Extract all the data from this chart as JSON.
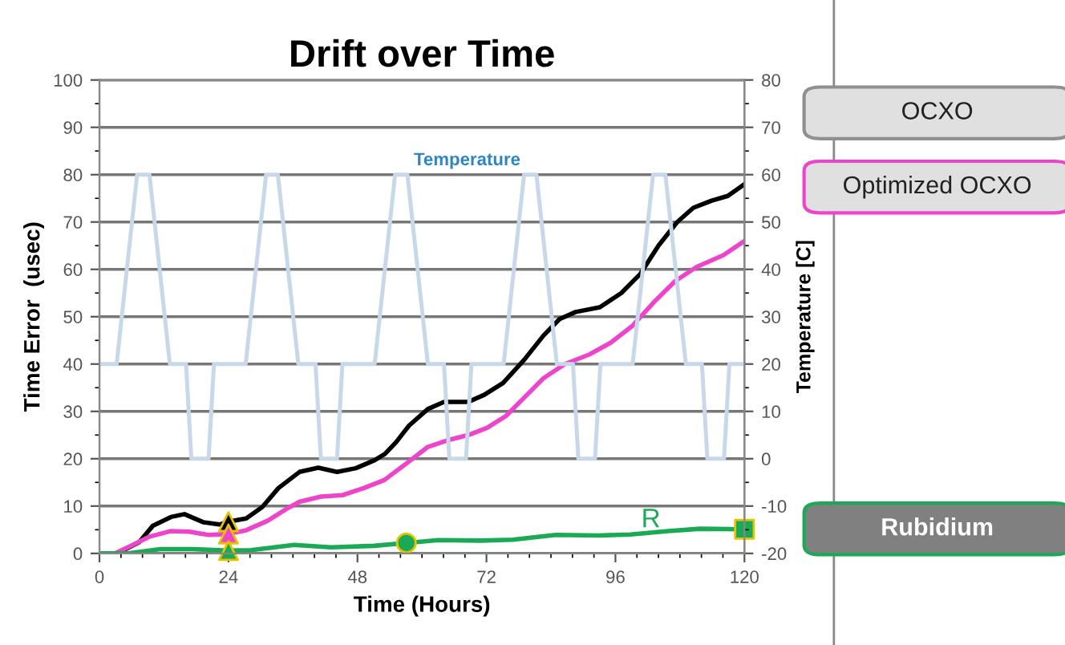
{
  "chart_data": {
    "type": "line",
    "title": "Drift over Time",
    "xlabel": "Time (Hours)",
    "ylabel": "Time Error  (usec)",
    "y2label": "Temperature [C]",
    "xlim": [
      0,
      120
    ],
    "xticks": [
      0,
      24,
      48,
      72,
      96,
      120
    ],
    "ylim": [
      0,
      100
    ],
    "yticks": [
      0,
      10,
      20,
      30,
      40,
      50,
      60,
      70,
      80,
      90,
      100
    ],
    "y2lim": [
      -20,
      80
    ],
    "y2ticks": [
      -20,
      -10,
      0,
      10,
      20,
      30,
      40,
      50,
      60,
      70,
      80
    ],
    "grid": "y",
    "legend": "right",
    "marker": "none",
    "line_style": "solid",
    "annotations": [
      "R"
    ],
    "series": [
      {
        "name": "Temperature",
        "axis": "y2",
        "color": "#c8d8ea",
        "x": [
          0,
          3.2,
          7,
          9.3,
          13.1,
          16.1,
          17.1,
          20.3,
          21.3,
          27.2,
          31,
          33.2,
          37,
          40.2,
          41.2,
          44.2,
          45.2,
          51.2,
          55,
          57.3,
          61.1,
          64.1,
          65.1,
          68.2,
          69.2,
          75.2,
          79,
          81.3,
          85.1,
          88.1,
          89.1,
          92.2,
          93.2,
          99.2,
          103,
          105.3,
          109.1,
          112.1,
          113.1,
          116.2,
          117.2,
          120
        ],
        "values": [
          20,
          20,
          60,
          60,
          20,
          20,
          0,
          0,
          20,
          20,
          60,
          60,
          20,
          20,
          0,
          0,
          20,
          20,
          60,
          60,
          20,
          20,
          0,
          0,
          20,
          20,
          60,
          60,
          20,
          20,
          0,
          0,
          20,
          20,
          60,
          60,
          20,
          20,
          0,
          0,
          20,
          20
        ]
      },
      {
        "name": "OCXO",
        "color": "#000000",
        "x": [
          0,
          3.3,
          7.4,
          9.9,
          13.3,
          15.8,
          19.3,
          22.3,
          24,
          27.3,
          30.3,
          33.3,
          37.2,
          40.7,
          44.2,
          47.7,
          51.2,
          53.1,
          55.2,
          57.6,
          61.1,
          64.1,
          68.6,
          71.6,
          75.1,
          79.1,
          82.6,
          85.6,
          88.6,
          93.1,
          97.1,
          100.6,
          104,
          107.5,
          110.5,
          113.9,
          116.9,
          120
        ],
        "values": [
          0,
          0,
          2.4,
          5.8,
          7.7,
          8.3,
          6.6,
          6.1,
          6.7,
          7.4,
          9.8,
          13.8,
          17.2,
          18.1,
          17.2,
          18,
          19.7,
          21,
          23.5,
          27,
          30.5,
          32,
          32,
          33.5,
          36,
          41,
          46,
          49.5,
          51,
          52,
          55,
          59,
          65,
          70,
          73,
          74.5,
          75.5,
          78
        ]
      },
      {
        "name": "Optimized OCXO",
        "color": "#ee44cc",
        "x": [
          0,
          2.9,
          6.2,
          9.2,
          13.2,
          16.7,
          20.3,
          24,
          27.3,
          31.3,
          34.8,
          37.2,
          41.2,
          45.2,
          49.2,
          53,
          57.1,
          61.1,
          65.1,
          68.6,
          72.1,
          75.6,
          79.1,
          82.6,
          86.6,
          91.1,
          95.1,
          99.1,
          103.1,
          107.1,
          111.1,
          116.1,
          120
        ],
        "values": [
          0,
          0,
          1.8,
          3.5,
          4.7,
          4.6,
          3.9,
          4.1,
          4.9,
          6.9,
          9.4,
          10.9,
          12,
          12.3,
          13.8,
          15.5,
          19,
          22.5,
          24,
          25,
          26.5,
          29,
          33,
          37,
          40,
          42,
          44.5,
          48,
          53,
          57.5,
          60.5,
          63,
          66
        ]
      },
      {
        "name": "Rubidium",
        "color": "#1aaa55",
        "x": [
          0,
          5.4,
          11.3,
          17.3,
          24,
          28.2,
          36.2,
          43.1,
          51.1,
          57.1,
          63,
          71,
          76.9,
          84.9,
          92.9,
          98.8,
          105.8,
          111.7,
          120
        ],
        "values": [
          0,
          0,
          0.9,
          0.9,
          0.6,
          0.7,
          1.8,
          1.3,
          1.6,
          2.2,
          2.8,
          2.7,
          2.9,
          3.9,
          3.8,
          4,
          4.7,
          5.2,
          5.1
        ]
      },
      {
        "type": "scatter",
        "marker": "triangle",
        "color": "#000000",
        "x": [
          24
        ],
        "values": [
          6.7
        ]
      },
      {
        "type": "scatter",
        "marker": "triangle",
        "color": "#ee44cc",
        "x": [
          24
        ],
        "values": [
          4.1
        ]
      },
      {
        "type": "scatter",
        "marker": "triangle",
        "color": "#1aaa55",
        "x": [
          24
        ],
        "values": [
          0.6
        ]
      },
      {
        "type": "scatter",
        "marker": "circle",
        "color": "#1aaa55",
        "x": [
          57.1
        ],
        "values": [
          2.2
        ]
      },
      {
        "type": "scatter",
        "marker": "square",
        "color": "#1aaa55",
        "x": [
          120
        ],
        "values": [
          5.1
        ]
      }
    ]
  }
}
